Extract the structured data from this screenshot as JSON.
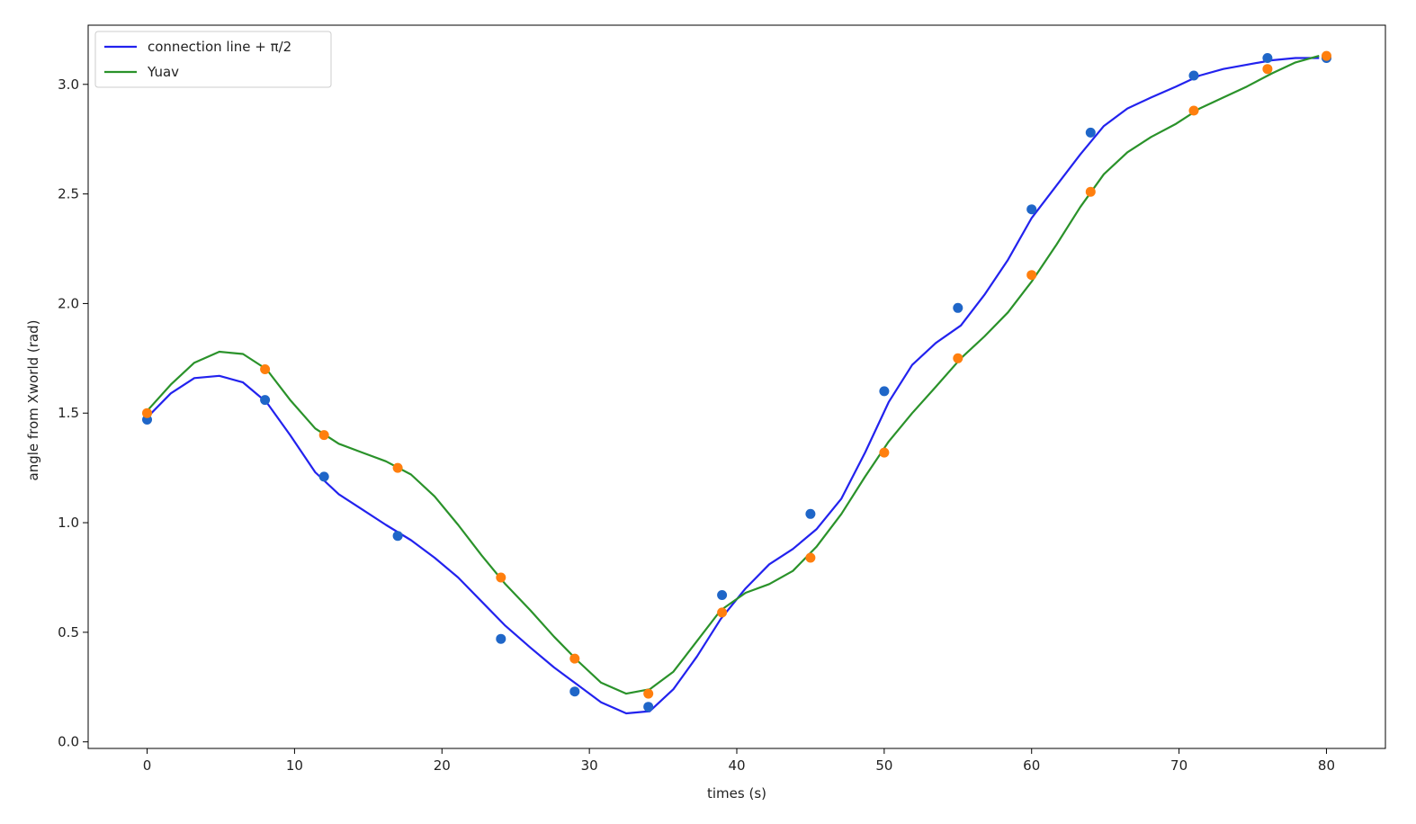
{
  "chart_data": {
    "type": "line",
    "xlabel": "times (s)",
    "ylabel": "angle from Xworld (rad)",
    "xlim": [
      -4,
      84
    ],
    "ylim": [
      -0.03,
      3.27
    ],
    "xticks": [
      0,
      10,
      20,
      30,
      40,
      50,
      60,
      70,
      80
    ],
    "yticks": [
      0.0,
      0.5,
      1.0,
      1.5,
      2.0,
      2.5,
      3.0
    ],
    "xtick_labels": [
      "0",
      "10",
      "20",
      "30",
      "40",
      "50",
      "60",
      "70",
      "80"
    ],
    "ytick_labels": [
      "0.0",
      "0.5",
      "1.0",
      "1.5",
      "2.0",
      "2.5",
      "3.0"
    ],
    "grid": false,
    "legend_position": "top-left",
    "series": [
      {
        "name": "connection line + π/2",
        "line_color": "#2222ee",
        "marker_color": "#1f66c8",
        "x": [
          0,
          1.6,
          3.2,
          4.9,
          6.5,
          8.1,
          9.7,
          11.4,
          13,
          14.6,
          16.2,
          17.9,
          19.5,
          21.1,
          22.7,
          24.3,
          26,
          27.6,
          29.2,
          30.8,
          32.5,
          34.1,
          35.7,
          37.3,
          38.9,
          40.6,
          42.2,
          43.8,
          45.4,
          47.1,
          48.7,
          50.3,
          51.9,
          53.5,
          55.2,
          56.8,
          58.4,
          60,
          61.7,
          63.3,
          64.9,
          66.5,
          68.1,
          69.8,
          71.4,
          73,
          74.6,
          76.3,
          77.9,
          79.5
        ],
        "y": [
          1.48,
          1.59,
          1.66,
          1.67,
          1.64,
          1.55,
          1.4,
          1.23,
          1.13,
          1.06,
          0.99,
          0.92,
          0.84,
          0.75,
          0.64,
          0.53,
          0.43,
          0.34,
          0.26,
          0.18,
          0.13,
          0.14,
          0.24,
          0.39,
          0.56,
          0.7,
          0.81,
          0.88,
          0.97,
          1.11,
          1.32,
          1.55,
          1.72,
          1.82,
          1.9,
          2.04,
          2.2,
          2.39,
          2.54,
          2.68,
          2.81,
          2.89,
          2.94,
          2.99,
          3.04,
          3.07,
          3.09,
          3.11,
          3.12,
          3.12
        ],
        "markers_x": [
          0,
          8,
          12,
          17,
          24,
          29,
          34,
          39,
          45,
          50,
          55,
          60,
          64,
          71,
          76,
          80
        ],
        "markers_y": [
          1.47,
          1.56,
          1.21,
          0.94,
          0.47,
          0.23,
          0.16,
          0.67,
          1.04,
          1.6,
          1.98,
          2.43,
          2.78,
          3.04,
          3.12,
          3.12
        ]
      },
      {
        "name": "Yuav",
        "line_color": "#2a922a",
        "marker_color": "#ff7f0e",
        "x": [
          0,
          1.6,
          3.2,
          4.9,
          6.5,
          8.1,
          9.7,
          11.4,
          13,
          14.6,
          16.2,
          17.9,
          19.5,
          21.1,
          22.7,
          24.3,
          26,
          27.6,
          29.2,
          30.8,
          32.5,
          34.1,
          35.7,
          37.3,
          38.9,
          40.6,
          42.2,
          43.8,
          45.4,
          47.1,
          48.7,
          50.3,
          51.9,
          53.5,
          55.2,
          56.8,
          58.4,
          60,
          61.7,
          63.3,
          64.9,
          66.5,
          68.1,
          69.8,
          71.4,
          73,
          74.6,
          76.3,
          77.9,
          79.5
        ],
        "y": [
          1.51,
          1.63,
          1.73,
          1.78,
          1.77,
          1.7,
          1.56,
          1.43,
          1.36,
          1.32,
          1.28,
          1.22,
          1.12,
          0.99,
          0.85,
          0.72,
          0.6,
          0.48,
          0.37,
          0.27,
          0.22,
          0.24,
          0.32,
          0.46,
          0.6,
          0.68,
          0.72,
          0.78,
          0.89,
          1.04,
          1.21,
          1.37,
          1.5,
          1.62,
          1.75,
          1.85,
          1.96,
          2.1,
          2.27,
          2.44,
          2.59,
          2.69,
          2.76,
          2.82,
          2.89,
          2.94,
          2.99,
          3.05,
          3.1,
          3.13
        ],
        "markers_x": [
          0,
          8,
          12,
          17,
          24,
          29,
          34,
          39,
          45,
          50,
          55,
          60,
          64,
          71,
          76,
          80
        ],
        "markers_y": [
          1.5,
          1.7,
          1.4,
          1.25,
          0.75,
          0.38,
          0.22,
          0.59,
          0.84,
          1.32,
          1.75,
          2.13,
          2.51,
          2.88,
          3.07,
          3.13
        ]
      }
    ]
  }
}
